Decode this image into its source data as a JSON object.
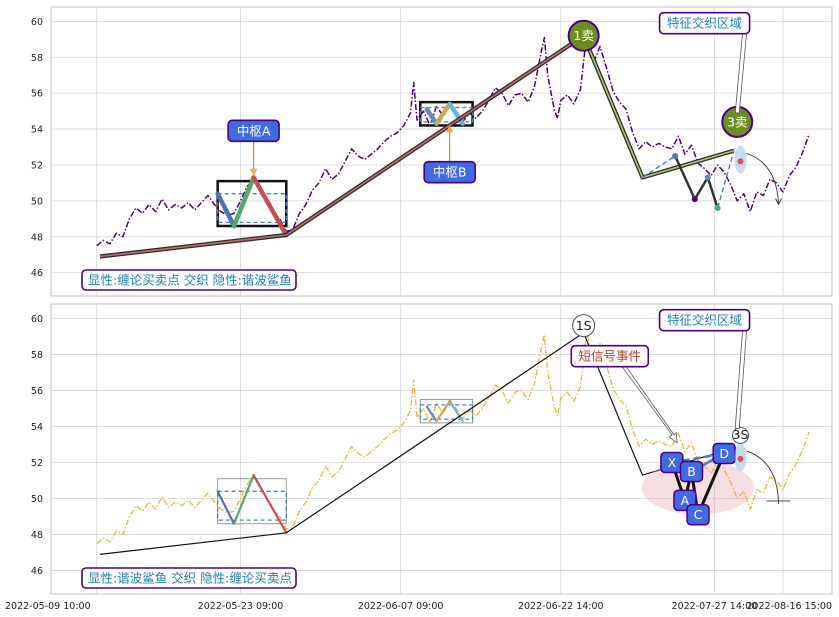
{
  "chart_data": [
    {
      "type": "line",
      "panel": "top",
      "ylim": [
        44.7,
        60.8
      ],
      "yticks": [
        46,
        48,
        50,
        52,
        54,
        56,
        58,
        60
      ],
      "x_ticks": [
        "2022-05-09 10:00",
        "2022-05-23 09:00",
        "2022-06-07 09:00",
        "2022-06-22 14:00",
        "2022-07-27 14:00",
        "2022-08-16 15:00"
      ],
      "grid": true,
      "price_series_color": "#4b0082",
      "price": [
        [
          0,
          47.5
        ],
        [
          2,
          47.8
        ],
        [
          4,
          47.6
        ],
        [
          6,
          48.2
        ],
        [
          8,
          48.0
        ],
        [
          10,
          49.0
        ],
        [
          12,
          49.6
        ],
        [
          14,
          49.3
        ],
        [
          16,
          49.8
        ],
        [
          18,
          49.4
        ],
        [
          20,
          50.1
        ],
        [
          22,
          49.5
        ],
        [
          24,
          49.8
        ],
        [
          26,
          49.6
        ],
        [
          28,
          49.9
        ],
        [
          30,
          49.5
        ],
        [
          32,
          49.9
        ],
        [
          34,
          50.3
        ],
        [
          36,
          49.8
        ],
        [
          38,
          49.4
        ],
        [
          40,
          49.2
        ],
        [
          42,
          49.3
        ],
        [
          44,
          50.0
        ],
        [
          46,
          50.8
        ],
        [
          48,
          51.2
        ],
        [
          50,
          50.6
        ],
        [
          52,
          50.0
        ],
        [
          54,
          49.4
        ],
        [
          56,
          49.0
        ],
        [
          58,
          48.3
        ],
        [
          60,
          48.4
        ],
        [
          62,
          49.3
        ],
        [
          64,
          49.8
        ],
        [
          66,
          50.6
        ],
        [
          68,
          51.0
        ],
        [
          70,
          51.8
        ],
        [
          72,
          51.2
        ],
        [
          74,
          51.5
        ],
        [
          76,
          52.2
        ],
        [
          78,
          52.9
        ],
        [
          80,
          52.5
        ],
        [
          82,
          52.3
        ],
        [
          84,
          52.6
        ],
        [
          86,
          52.9
        ],
        [
          88,
          53.3
        ],
        [
          90,
          53.6
        ],
        [
          92,
          53.8
        ],
        [
          94,
          54.2
        ],
        [
          96,
          54.9
        ],
        [
          97,
          56.6
        ],
        [
          98,
          54.5
        ],
        [
          100,
          55.0
        ],
        [
          102,
          54.2
        ],
        [
          104,
          55.3
        ],
        [
          106,
          54.7
        ],
        [
          108,
          55.5
        ],
        [
          110,
          55.0
        ],
        [
          112,
          54.4
        ],
        [
          114,
          54.9
        ],
        [
          116,
          54.6
        ],
        [
          118,
          55.0
        ],
        [
          120,
          55.6
        ],
        [
          122,
          56.3
        ],
        [
          124,
          56.0
        ],
        [
          126,
          55.3
        ],
        [
          128,
          55.9
        ],
        [
          130,
          56.0
        ],
        [
          132,
          55.5
        ],
        [
          134,
          56.4
        ],
        [
          136,
          58.3
        ],
        [
          137,
          59.1
        ],
        [
          138,
          57.0
        ],
        [
          140,
          55.1
        ],
        [
          141,
          54.6
        ],
        [
          142,
          55.6
        ],
        [
          144,
          55.9
        ],
        [
          146,
          55.4
        ],
        [
          148,
          56.2
        ],
        [
          150,
          59.4
        ],
        [
          151,
          58.1
        ],
        [
          152,
          57.7
        ],
        [
          154,
          58.6
        ],
        [
          156,
          57.4
        ],
        [
          158,
          56.1
        ],
        [
          160,
          55.5
        ],
        [
          162,
          55.1
        ],
        [
          164,
          53.8
        ],
        [
          166,
          52.9
        ],
        [
          168,
          53.3
        ],
        [
          170,
          53.0
        ],
        [
          172,
          53.2
        ],
        [
          174,
          53.0
        ],
        [
          176,
          52.9
        ],
        [
          178,
          53.6
        ],
        [
          180,
          52.6
        ],
        [
          182,
          53.1
        ],
        [
          184,
          52.1
        ],
        [
          186,
          51.8
        ],
        [
          188,
          51.4
        ],
        [
          190,
          52.0
        ],
        [
          192,
          51.6
        ],
        [
          194,
          50.9
        ],
        [
          196,
          50.0
        ],
        [
          198,
          50.4
        ],
        [
          200,
          49.4
        ],
        [
          202,
          50.5
        ],
        [
          204,
          50.3
        ],
        [
          206,
          51.2
        ],
        [
          208,
          51.0
        ],
        [
          210,
          50.5
        ],
        [
          212,
          51.4
        ],
        [
          214,
          51.9
        ],
        [
          216,
          52.7
        ],
        [
          218,
          53.7
        ]
      ],
      "stroke_line": [
        [
          1,
          46.9
        ],
        [
          58,
          48.1
        ],
        [
          149,
          59.2
        ],
        [
          167,
          51.3
        ],
        [
          195,
          52.8
        ]
      ],
      "late_strokes": [
        [
          167,
          51.3
        ],
        [
          177,
          52.5
        ],
        [
          183,
          50.1
        ],
        [
          187,
          51.3
        ],
        [
          190,
          49.6
        ],
        [
          195,
          52.8
        ]
      ],
      "pivots": [
        {
          "name": "中枢A",
          "x": [
            37,
            58
          ],
          "y": [
            48.6,
            51.1
          ],
          "zg": 50.4,
          "zd": 48.8
        },
        {
          "name": "中枢B",
          "x": [
            99,
            115
          ],
          "y": [
            54.2,
            55.5
          ],
          "zg": 55.2,
          "zd": 54.4
        }
      ],
      "zigzag_a": [
        [
          37,
          50.4
        ],
        [
          42,
          48.6
        ],
        [
          48,
          51.3
        ],
        [
          58,
          48.1
        ]
      ],
      "zigzag_b": [
        [
          101,
          55.1
        ],
        [
          104,
          54.3
        ],
        [
          108,
          55.4
        ],
        [
          112,
          54.3
        ]
      ],
      "zigzag_colors": [
        "#4c72b0",
        "#55a868",
        "#c44e52"
      ],
      "signal_markers": [
        {
          "label": "1卖",
          "x": 149,
          "y": 59.2
        },
        {
          "label": "3卖",
          "x": 196,
          "y": 54.4
        }
      ],
      "annotations": [
        {
          "text": "中枢A",
          "x": 48,
          "y": 53.9
        },
        {
          "text": "中枢B",
          "x": 108,
          "y": 51.6
        },
        {
          "text": "特征交织区域",
          "x": 186,
          "y": 59.9
        }
      ],
      "legend": "显性:缠论买卖点 交织 隐性:谐波鲨鱼"
    },
    {
      "type": "line",
      "panel": "bottom",
      "ylim": [
        44.7,
        60.8
      ],
      "yticks": [
        46,
        48,
        50,
        52,
        54,
        56,
        58,
        60
      ],
      "x_ticks": [
        "2022-05-09 10:00",
        "2022-05-23 09:00",
        "2022-06-07 09:00",
        "2022-06-22 14:00",
        "2022-07-27 14:00",
        "2022-08-16 15:00"
      ],
      "price_series_color": "#f0b23a",
      "stroke_line": [
        [
          1,
          46.9
        ],
        [
          58,
          48.1
        ],
        [
          149,
          59.2
        ],
        [
          167,
          51.3
        ],
        [
          195,
          52.8
        ]
      ],
      "harmonic_points": [
        {
          "label": "X",
          "x": 176,
          "y": 52.0
        },
        {
          "label": "A",
          "x": 180,
          "y": 49.9
        },
        {
          "label": "B",
          "x": 182,
          "y": 51.5
        },
        {
          "label": "C",
          "x": 184,
          "y": 49.1
        },
        {
          "label": "D",
          "x": 192,
          "y": 52.5
        }
      ],
      "signal_markers": [
        {
          "label": "1S",
          "x": 149,
          "y": 59.6
        },
        {
          "label": "3S",
          "x": 197,
          "y": 53.5
        }
      ],
      "annotations": [
        {
          "text": "短信号事件",
          "x": 157,
          "y": 57.9
        },
        {
          "text": "特征交织区域",
          "x": 186,
          "y": 59.9
        }
      ],
      "legend": "显性:谐波鲨鱼 交织 隐性:缠论买卖点"
    }
  ]
}
